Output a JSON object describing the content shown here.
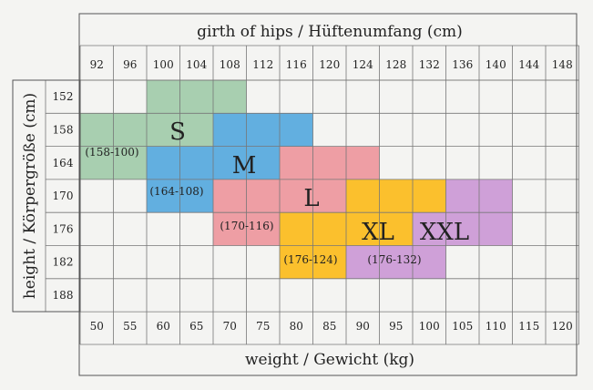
{
  "chart_data": {
    "type": "heatmap",
    "top_axis_label": "girth of hips / Hüftenumfang (cm)",
    "bottom_axis_label": "weight / Gewicht (kg)",
    "left_axis_label": "height / Körpergröße (cm)",
    "hip_ticks": [
      "92",
      "96",
      "100",
      "104",
      "108",
      "112",
      "116",
      "120",
      "124",
      "128",
      "132",
      "136",
      "140",
      "144",
      "148"
    ],
    "weight_ticks": [
      "50",
      "55",
      "60",
      "65",
      "70",
      "75",
      "80",
      "85",
      "90",
      "95",
      "100",
      "105",
      "110",
      "115",
      "120"
    ],
    "height_ticks": [
      "152",
      "158",
      "164",
      "170",
      "176",
      "182",
      "188"
    ],
    "grid": true,
    "sizes": [
      {
        "name": "S",
        "range_label": "(158-100)",
        "color": "#a8cfb0",
        "rows": [
          {
            "height": "152",
            "from_col": 2,
            "to_col": 4
          },
          {
            "height": "158",
            "from_col": 0,
            "to_col": 3
          },
          {
            "height": "164",
            "from_col": 0,
            "to_col": 1
          }
        ]
      },
      {
        "name": "M",
        "range_label": "(164-108)",
        "color": "#62afe0",
        "rows": [
          {
            "height": "158",
            "from_col": 4,
            "to_col": 6
          },
          {
            "height": "164",
            "from_col": 2,
            "to_col": 5
          },
          {
            "height": "170",
            "from_col": 2,
            "to_col": 3
          }
        ]
      },
      {
        "name": "L",
        "range_label": "(170-116)",
        "color": "#ee9ea4",
        "rows": [
          {
            "height": "164",
            "from_col": 6,
            "to_col": 8
          },
          {
            "height": "170",
            "from_col": 4,
            "to_col": 7
          },
          {
            "height": "176",
            "from_col": 4,
            "to_col": 5
          }
        ]
      },
      {
        "name": "XL",
        "range_label": "(176-124)",
        "color": "#fbc02d",
        "rows": [
          {
            "height": "170",
            "from_col": 8,
            "to_col": 10
          },
          {
            "height": "176",
            "from_col": 6,
            "to_col": 9
          },
          {
            "height": "182",
            "from_col": 6,
            "to_col": 7
          }
        ]
      },
      {
        "name": "XXL",
        "range_label": "(176-132)",
        "color": "#cfa0d8",
        "rows": [
          {
            "height": "170",
            "from_col": 11,
            "to_col": 12
          },
          {
            "height": "176",
            "from_col": 10,
            "to_col": 12
          },
          {
            "height": "182",
            "from_col": 8,
            "to_col": 10
          }
        ]
      }
    ]
  }
}
